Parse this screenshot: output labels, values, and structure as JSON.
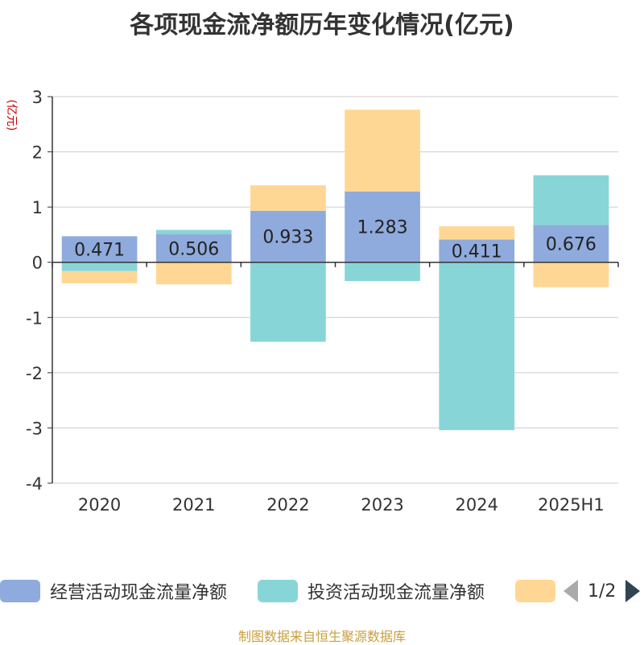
{
  "chart_data": {
    "type": "bar",
    "stacked": true,
    "title": "各项现金流净额历年变化情况(亿元)",
    "ylabel": "(亿元)",
    "categories": [
      "2020",
      "2021",
      "2022",
      "2023",
      "2024",
      "2025H1"
    ],
    "yticks": [
      3,
      2,
      1,
      0,
      -1,
      -2,
      -3,
      -4
    ],
    "ylim": [
      -4,
      3
    ],
    "grid": true,
    "series": [
      {
        "name": "经营活动现金流量净额",
        "color": "#8faadc",
        "values": [
          0.471,
          0.506,
          0.933,
          1.283,
          0.411,
          0.676
        ],
        "labels": [
          "0.471",
          "0.506",
          "0.933",
          "1.283",
          "0.411",
          "0.676"
        ]
      },
      {
        "name": "投资活动现金流量净额",
        "color": "#88d5d8",
        "values": [
          -0.16,
          0.08,
          -1.44,
          -0.34,
          -3.04,
          0.9
        ]
      },
      {
        "name": "",
        "color": "#ffd794",
        "values": [
          -0.22,
          -0.4,
          0.46,
          1.48,
          0.24,
          -0.45
        ]
      }
    ]
  },
  "legend": {
    "pager_text": "1/2",
    "placement": "bottom"
  },
  "footer": {
    "source": "制图数据来自恒生聚源数据库"
  }
}
